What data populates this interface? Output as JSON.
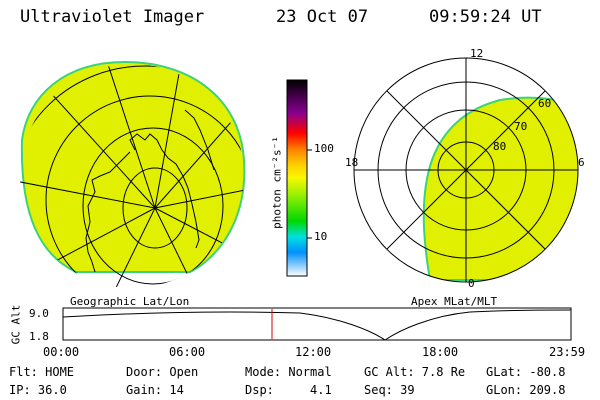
{
  "header": {
    "instrument": "Ultraviolet Imager",
    "date": "23 Oct 07",
    "time": "09:59:24 UT"
  },
  "colors": {
    "aurora_fill": "#e1f000",
    "edge_green": "#3cd27a",
    "marker_red": "#e00000"
  },
  "left_panel": {
    "label": "Geographic Lat/Lon"
  },
  "right_panel": {
    "label": "Apex MLat/MLT",
    "mlt_labels": {
      "top": "12",
      "left": "18",
      "right": "6",
      "bottom": "0"
    },
    "lat_labels": [
      "60",
      "70",
      "80"
    ]
  },
  "colorbar": {
    "unit": "photon cm⁻²s⁻¹",
    "tick_labels": [
      "100",
      "10"
    ],
    "stops": [
      "#000000",
      "#3a0040",
      "#8a0090",
      "#ff0000",
      "#ff8800",
      "#ffd400",
      "#f8f800",
      "#88ee00",
      "#00d800",
      "#00e0e0",
      "#0090ff",
      "#ffffff"
    ]
  },
  "alt_plot": {
    "y_label": "GC Alt",
    "y_ticks": [
      "9.0",
      "1.8"
    ],
    "x_ticks": [
      "00:00",
      "06:00",
      "12:00",
      "18:00",
      "23:59"
    ]
  },
  "info": {
    "flt": "Flt: HOME",
    "door": "Door: Open",
    "mode": "Mode: Normal",
    "gc_alt": "GC Alt: 7.8 Re",
    "glat": "GLat: -80.8",
    "ip": "IP: 36.0",
    "gain": "Gain: 14",
    "dsp": "Dsp:     4.1",
    "seq": "Seq: 39",
    "glon": "GLon: 209.8"
  }
}
